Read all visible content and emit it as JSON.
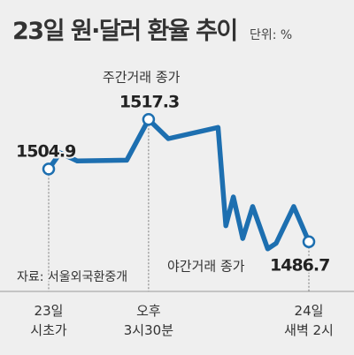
{
  "header": {
    "title": "23일 원·달러 환율 추이",
    "unit": "단위: %"
  },
  "source": "자료: 서울외국환중개",
  "chart_data": {
    "type": "line",
    "title": "23일 원·달러 환율 추이",
    "unit": "단위: %",
    "ylim": [
      1480,
      1522
    ],
    "grid": false,
    "legend": "none",
    "line_color": "#1d6fb0",
    "x_ticks": [
      {
        "lines": [
          "23일",
          "시초가"
        ],
        "t": 0.0
      },
      {
        "lines": [
          "오후",
          "3시30분"
        ],
        "t": 0.384
      },
      {
        "lines": [
          "24일",
          "새벽 2시"
        ],
        "t": 1.0
      }
    ],
    "series": [
      {
        "points": [
          {
            "t": 0.0,
            "y": 1504.9
          },
          {
            "t": 0.03,
            "y": 1507.6
          },
          {
            "t": 0.038,
            "y": 1509.1
          },
          {
            "t": 0.11,
            "y": 1506.9
          },
          {
            "t": 0.3,
            "y": 1507.1
          },
          {
            "t": 0.384,
            "y": 1517.3
          },
          {
            "t": 0.46,
            "y": 1512.5
          },
          {
            "t": 0.651,
            "y": 1515.3
          },
          {
            "t": 0.681,
            "y": 1490.7
          },
          {
            "t": 0.71,
            "y": 1497.9
          },
          {
            "t": 0.746,
            "y": 1487.5
          },
          {
            "t": 0.784,
            "y": 1495.5
          },
          {
            "t": 0.842,
            "y": 1484.9
          },
          {
            "t": 0.874,
            "y": 1486.3
          },
          {
            "t": 0.942,
            "y": 1495.5
          },
          {
            "t": 1.0,
            "y": 1486.7
          }
        ]
      }
    ],
    "annotations": [
      {
        "label": "",
        "value": "1504.9",
        "t": 0.0,
        "y": 1504.9
      },
      {
        "label": "주간거래 종가",
        "value": "1517.3",
        "t": 0.384,
        "y": 1517.3
      },
      {
        "label": "야간거래 종가",
        "value": "1486.7",
        "t": 1.0,
        "y": 1486.7
      }
    ]
  }
}
